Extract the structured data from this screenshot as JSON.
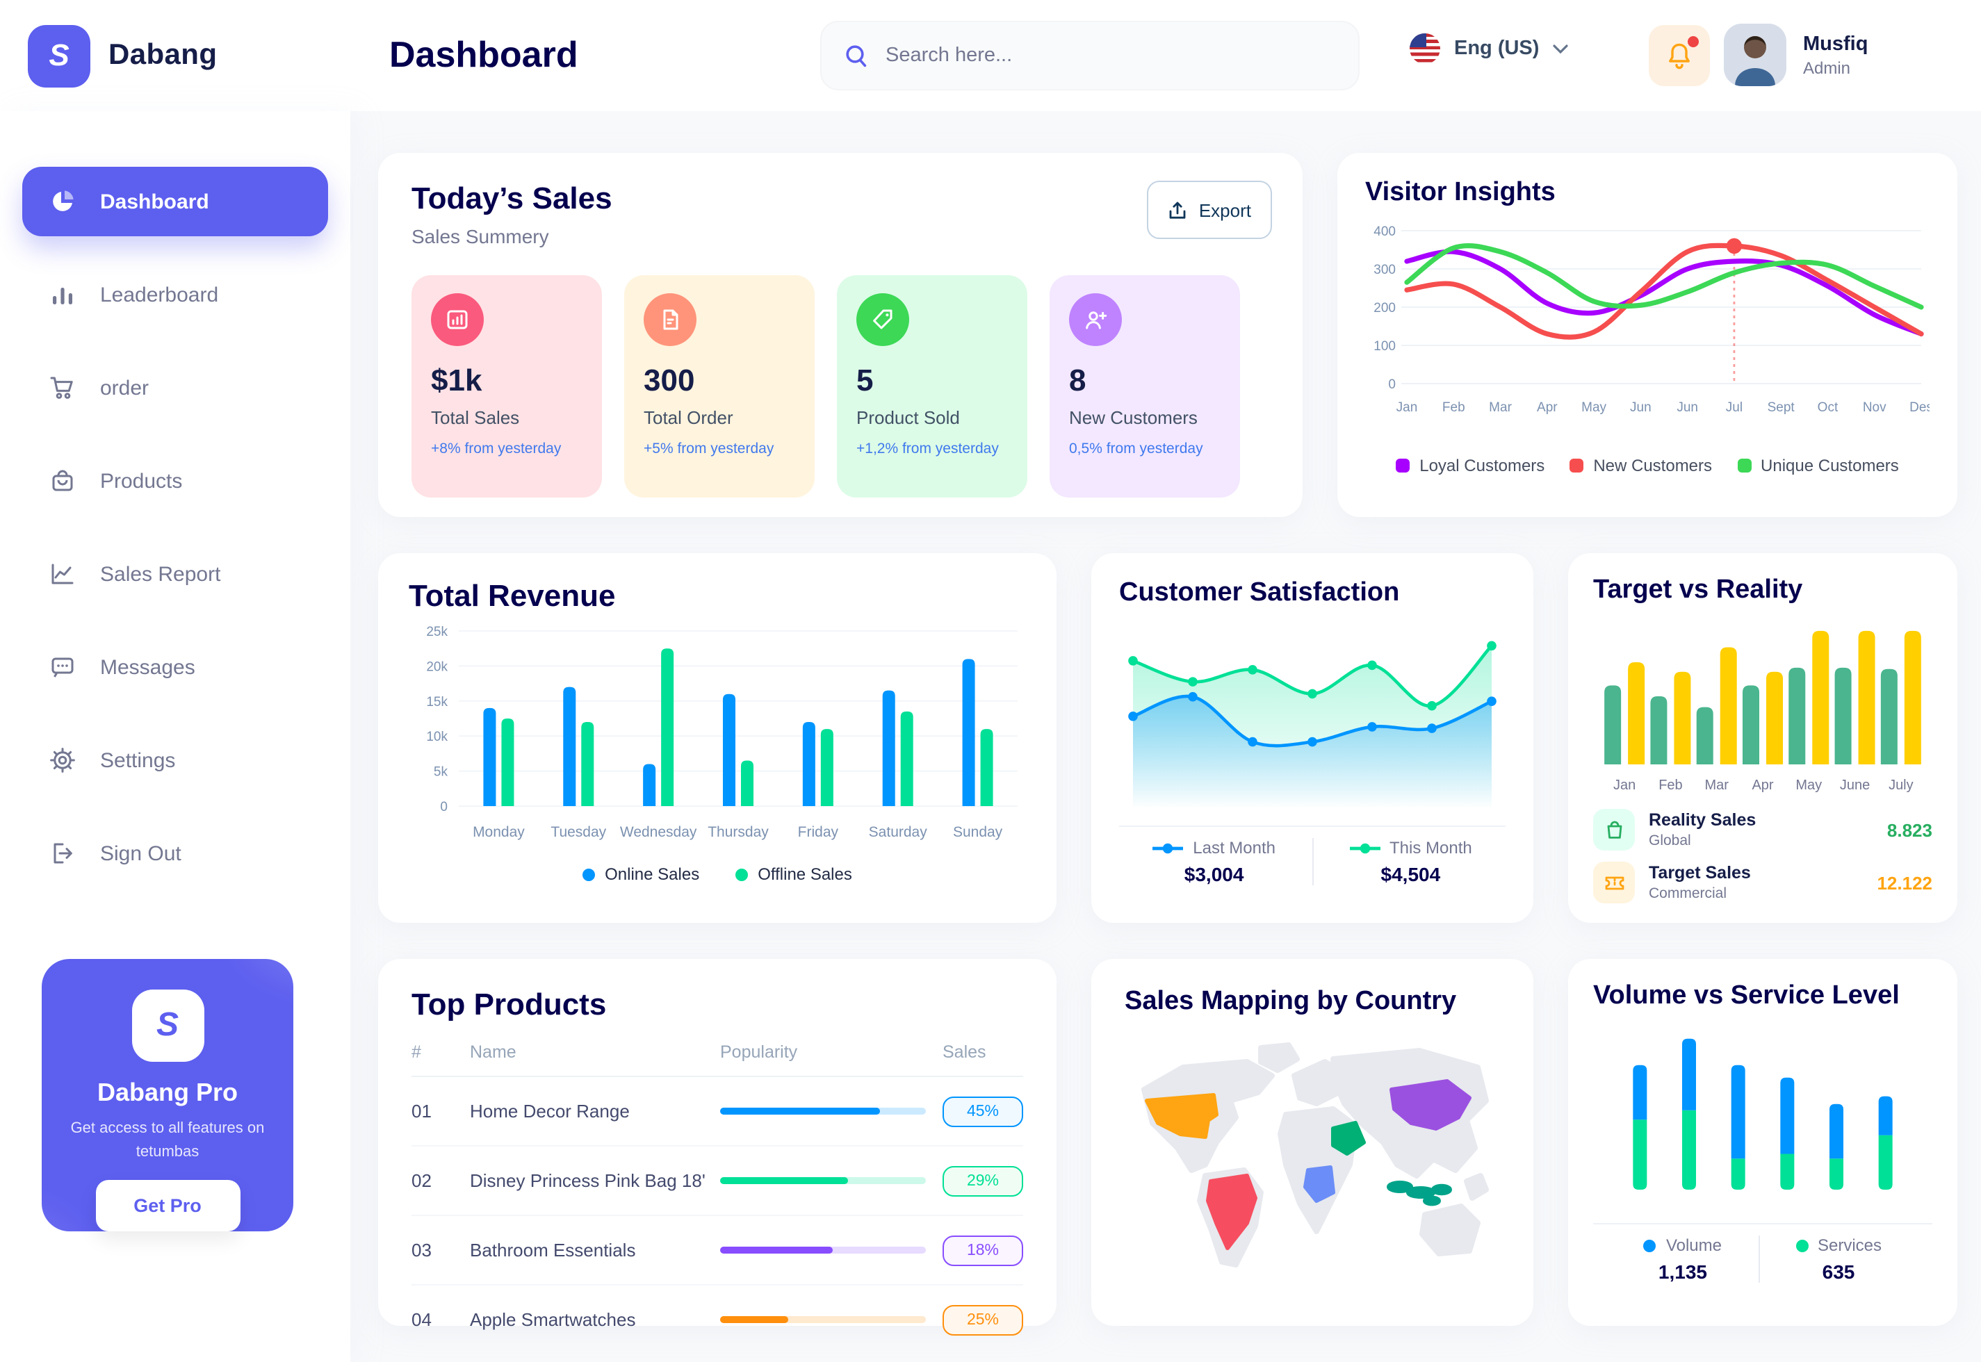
{
  "brand": {
    "name": "Dabang"
  },
  "header": {
    "page_title": "Dashboard",
    "search": {
      "placeholder": "Search here..."
    },
    "language": {
      "label": "Eng (US)"
    },
    "user": {
      "name": "Musfiq",
      "role": "Admin"
    }
  },
  "sidebar": {
    "items": [
      {
        "label": "Dashboard",
        "icon": "pie-chart-icon",
        "active": true
      },
      {
        "label": "Leaderboard",
        "icon": "bar-chart-icon",
        "active": false
      },
      {
        "label": "order",
        "icon": "cart-icon",
        "active": false
      },
      {
        "label": "Products",
        "icon": "bag-icon",
        "active": false
      },
      {
        "label": "Sales Report",
        "icon": "line-chart-icon",
        "active": false
      },
      {
        "label": "Messages",
        "icon": "message-icon",
        "active": false
      },
      {
        "label": "Settings",
        "icon": "gear-icon",
        "active": false
      },
      {
        "label": "Sign Out",
        "icon": "sign-out-icon",
        "active": false
      }
    ],
    "promo": {
      "title": "Dabang Pro",
      "subtitle": "Get access to all features on tetumbas",
      "cta": "Get Pro"
    }
  },
  "todays_sales": {
    "title": "Today’s Sales",
    "subtitle": "Sales Summery",
    "export_label": "Export",
    "cards": [
      {
        "value": "$1k",
        "label": "Total Sales",
        "delta": "+8% from yesterday",
        "bg": "#FFE2E5",
        "icon_bg": "#FA5A7D",
        "icon": "chart-icon"
      },
      {
        "value": "300",
        "label": "Total Order",
        "delta": "+5% from yesterday",
        "bg": "#FFF4DE",
        "icon_bg": "#FF947A",
        "icon": "file-icon"
      },
      {
        "value": "5",
        "label": "Product Sold",
        "delta": "+1,2% from yesterday",
        "bg": "#DCFCE7",
        "icon_bg": "#3CD856",
        "icon": "tag-icon"
      },
      {
        "value": "8",
        "label": "New Customers",
        "delta": "0,5% from yesterday",
        "bg": "#F3E8FF",
        "icon_bg": "#BF83FF",
        "icon": "user-plus-icon"
      }
    ]
  },
  "chart_data": [
    {
      "id": "visitor_insights",
      "type": "line",
      "title": "Visitor Insights",
      "x": [
        "Jan",
        "Feb",
        "Mar",
        "Apr",
        "May",
        "Jun",
        "Jun",
        "Jul",
        "Sept",
        "Oct",
        "Nov",
        "Des"
      ],
      "ylim": [
        0,
        400
      ],
      "ytick_values": [
        0,
        100,
        200,
        300,
        400
      ],
      "ytick_labels": [
        "0",
        "100",
        "200",
        "300",
        "400"
      ],
      "grid": true,
      "legend_position": "bottom",
      "series": [
        {
          "name": "Loyal Customers",
          "color": "#A700FF",
          "values": [
            320,
            345,
            300,
            210,
            185,
            230,
            300,
            320,
            310,
            255,
            180,
            130
          ]
        },
        {
          "name": "New Customers",
          "color": "#F64E4E",
          "values": [
            245,
            260,
            200,
            130,
            135,
            240,
            345,
            360,
            335,
            270,
            200,
            130
          ]
        },
        {
          "name": "Unique Customers",
          "color": "#3CD856",
          "values": [
            265,
            355,
            345,
            290,
            215,
            205,
            240,
            290,
            315,
            310,
            255,
            200
          ]
        }
      ],
      "highlight": {
        "series_index": 1,
        "point_index": 7,
        "color": "#F64E4E"
      }
    },
    {
      "id": "total_revenue",
      "type": "bar",
      "title": "Total Revenue",
      "categories": [
        "Monday",
        "Tuesday",
        "Wednesday",
        "Thursday",
        "Friday",
        "Saturday",
        "Sunday"
      ],
      "ylim": [
        0,
        25000
      ],
      "ytick_values": [
        0,
        5000,
        10000,
        15000,
        20000,
        25000
      ],
      "ytick_labels": [
        "0",
        "5k",
        "10k",
        "15k",
        "20k",
        "25k"
      ],
      "grid": true,
      "legend_position": "bottom",
      "series": [
        {
          "name": "Online Sales",
          "color": "#0095FF",
          "values": [
            14000,
            17000,
            6000,
            16000,
            12000,
            16500,
            21000
          ]
        },
        {
          "name": "Offline Sales",
          "color": "#00E096",
          "values": [
            12500,
            12000,
            22500,
            6500,
            11000,
            13500,
            11000
          ]
        }
      ]
    },
    {
      "id": "customer_satisfaction",
      "type": "area",
      "title": "Customer Satisfaction",
      "ylim": [
        0,
        100
      ],
      "grid": false,
      "legend_position": "bottom",
      "series": [
        {
          "name": "This Month",
          "color": "#00E096",
          "total": "$4,504",
          "values": [
            82,
            68,
            76,
            60,
            79,
            52,
            92
          ]
        },
        {
          "name": "Last Month",
          "color": "#0095FF",
          "total": "$3,004",
          "values": [
            45,
            58,
            28,
            28,
            38,
            37,
            55
          ]
        }
      ],
      "legend_order": [
        "Last Month",
        "This Month"
      ]
    },
    {
      "id": "target_vs_reality",
      "type": "bar",
      "title": "Target vs Reality",
      "categories": [
        "Jan",
        "Feb",
        "Mar",
        "Apr",
        "May",
        "June",
        "July"
      ],
      "ylim": [
        0,
        100
      ],
      "grid": false,
      "series": [
        {
          "name": "Reality Sales",
          "color": "#4AB58E",
          "values": [
            58,
            50,
            42,
            58,
            71,
            71,
            70
          ]
        },
        {
          "name": "Target Sales",
          "color": "#FFCF00",
          "values": [
            75,
            68,
            86,
            68,
            98,
            98,
            98
          ]
        }
      ],
      "stats": [
        {
          "title": "Reality Sales",
          "subtitle": "Global",
          "value": "8.823",
          "value_color": "#27AE60",
          "icon": "shop-bag-icon",
          "icon_bg": "#E2FFF3",
          "icon_color": "#27AE60"
        },
        {
          "title": "Target Sales",
          "subtitle": "Commercial",
          "value": "12.122",
          "value_color": "#FFA412",
          "icon": "ticket-icon",
          "icon_bg": "#FFF4DE",
          "icon_color": "#FFA412"
        }
      ]
    },
    {
      "id": "volume_vs_service",
      "type": "stacked-bar",
      "title": "Volume vs Service Level",
      "ylim": [
        0,
        100
      ],
      "grid": false,
      "legend_position": "bottom",
      "series": [
        {
          "name": "Volume",
          "color": "#0095FF",
          "total": "1,135",
          "values": [
            35,
            46,
            60,
            49,
            35,
            25
          ]
        },
        {
          "name": "Services",
          "color": "#00E096",
          "total": "635",
          "values": [
            45,
            51,
            20,
            23,
            20,
            35
          ]
        }
      ]
    }
  ],
  "top_products": {
    "title": "Top Products",
    "headers": {
      "num": "#",
      "name": "Name",
      "popularity": "Popularity",
      "sales": "Sales"
    },
    "rows": [
      {
        "num": "01",
        "name": "Home Decor Range",
        "popularity_pct": 78,
        "sales": "45%",
        "color": "#0095FF",
        "badge_bg": "#F0F9FF"
      },
      {
        "num": "02",
        "name": "Disney Princess Pink Bag 18'",
        "popularity_pct": 62,
        "sales": "29%",
        "color": "#00E096",
        "badge_bg": "#F0FDF4"
      },
      {
        "num": "03",
        "name": "Bathroom Essentials",
        "popularity_pct": 55,
        "sales": "18%",
        "color": "#884DFF",
        "badge_bg": "#FAF5FF"
      },
      {
        "num": "04",
        "name": "Apple Smartwatches",
        "popularity_pct": 33,
        "sales": "25%",
        "color": "#FF8F0D",
        "badge_bg": "#FFF7ED"
      }
    ]
  },
  "sales_map": {
    "title": "Sales Mapping by Country",
    "countries": [
      {
        "name": "United States",
        "color": "#FFA412"
      },
      {
        "name": "Brazil",
        "color": "#F64E60"
      },
      {
        "name": "Saudi Arabia",
        "color": "#00B074"
      },
      {
        "name": "DR Congo",
        "color": "#6B8DF7"
      },
      {
        "name": "China",
        "color": "#9B51E0"
      },
      {
        "name": "Indonesia",
        "color": "#00A389"
      }
    ]
  },
  "colors": {
    "primary": "#5D5FEF",
    "heading": "#05004E",
    "muted": "#737791",
    "axis": "#7B91B0",
    "grid": "#EEF2F6"
  }
}
